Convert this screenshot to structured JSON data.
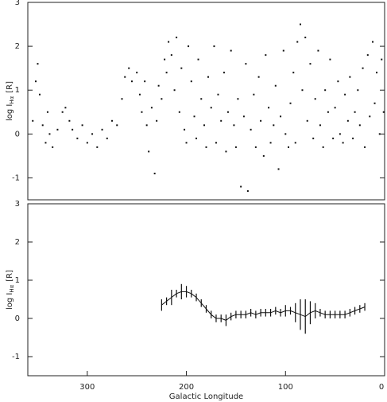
{
  "chart_data": [
    {
      "type": "scatter",
      "ylabel": [
        "log I",
        "Hα",
        "[R]"
      ],
      "color": "#111111",
      "xlim": [
        360,
        0
      ],
      "ylim": [
        -1.5,
        3
      ],
      "yticks": [
        -1,
        0,
        1,
        2,
        3
      ],
      "x": [
        355,
        352,
        350,
        348,
        345,
        342,
        340,
        338,
        335,
        330,
        325,
        322,
        318,
        315,
        310,
        305,
        300,
        295,
        290,
        285,
        280,
        275,
        270,
        265,
        262,
        258,
        255,
        250,
        247,
        245,
        242,
        240,
        238,
        235,
        232,
        230,
        228,
        225,
        222,
        220,
        218,
        215,
        212,
        210,
        207,
        205,
        202,
        200,
        198,
        195,
        192,
        190,
        188,
        185,
        182,
        180,
        178,
        175,
        172,
        170,
        168,
        165,
        162,
        160,
        158,
        155,
        152,
        150,
        148,
        145,
        142,
        140,
        138,
        135,
        132,
        130,
        127,
        125,
        122,
        120,
        117,
        115,
        112,
        110,
        107,
        105,
        102,
        100,
        97,
        95,
        92,
        90,
        88,
        85,
        83,
        80,
        78,
        75,
        72,
        70,
        67,
        65,
        62,
        60,
        57,
        55,
        52,
        50,
        47,
        45,
        42,
        40,
        37,
        35,
        32,
        30,
        27,
        25,
        22,
        20,
        17,
        15,
        12,
        10,
        8,
        5,
        3,
        1
      ],
      "y": [
        0.3,
        1.2,
        1.6,
        0.9,
        0.2,
        -0.2,
        0.5,
        0.0,
        -0.3,
        0.1,
        0.5,
        0.6,
        0.3,
        0.1,
        -0.1,
        0.2,
        -0.2,
        0.0,
        -0.3,
        0.1,
        -0.1,
        0.3,
        0.2,
        0.8,
        1.3,
        1.5,
        1.2,
        1.4,
        0.9,
        0.5,
        1.2,
        0.2,
        -0.4,
        0.6,
        -0.9,
        0.3,
        1.1,
        0.8,
        1.7,
        1.4,
        2.1,
        1.8,
        1.0,
        2.2,
        0.5,
        1.5,
        0.1,
        -0.2,
        2.0,
        1.2,
        0.4,
        -0.1,
        1.7,
        0.8,
        0.2,
        -0.3,
        1.3,
        0.6,
        2.0,
        -0.2,
        0.9,
        0.3,
        1.4,
        -0.4,
        0.5,
        1.9,
        0.2,
        -0.3,
        0.8,
        -1.2,
        0.4,
        1.6,
        -1.3,
        0.1,
        0.9,
        -0.3,
        1.3,
        0.3,
        -0.5,
        1.8,
        0.6,
        -0.2,
        0.2,
        1.1,
        -0.8,
        0.4,
        1.9,
        0.0,
        -0.3,
        0.7,
        1.4,
        -0.2,
        2.1,
        2.5,
        1.0,
        2.2,
        0.3,
        1.6,
        -0.1,
        0.8,
        1.9,
        0.2,
        -0.3,
        1.0,
        0.5,
        1.7,
        -0.1,
        0.6,
        1.2,
        0.0,
        -0.2,
        0.9,
        0.3,
        1.3,
        -0.1,
        0.5,
        1.0,
        0.2,
        1.5,
        -0.3,
        1.8,
        0.4,
        2.1,
        0.7,
        1.4,
        0.0,
        1.7,
        0.5
      ]
    },
    {
      "type": "errorbar",
      "ylabel": [
        "log I",
        "Hα",
        "[R]"
      ],
      "xlabel": "Galactic Longitude",
      "color": "#111111",
      "xlim": [
        360,
        0
      ],
      "xticks": [
        300,
        200,
        100,
        0
      ],
      "ylim": [
        -1.5,
        3
      ],
      "yticks": [
        -1,
        0,
        1,
        2,
        3
      ],
      "x": [
        225,
        220,
        215,
        210,
        205,
        200,
        195,
        190,
        185,
        180,
        175,
        170,
        165,
        160,
        155,
        150,
        145,
        140,
        135,
        130,
        125,
        120,
        115,
        110,
        105,
        100,
        95,
        90,
        85,
        80,
        75,
        70,
        65,
        60,
        55,
        50,
        45,
        40,
        35,
        30,
        25,
        20
      ],
      "values": [
        0.35,
        0.45,
        0.55,
        0.65,
        0.7,
        0.7,
        0.65,
        0.55,
        0.4,
        0.25,
        0.1,
        0.0,
        0.0,
        -0.05,
        0.05,
        0.1,
        0.1,
        0.1,
        0.15,
        0.1,
        0.15,
        0.15,
        0.15,
        0.2,
        0.15,
        0.2,
        0.2,
        0.15,
        0.1,
        0.05,
        0.15,
        0.2,
        0.15,
        0.1,
        0.1,
        0.1,
        0.1,
        0.1,
        0.15,
        0.2,
        0.25,
        0.3
      ],
      "errors": [
        0.15,
        0.1,
        0.2,
        0.1,
        0.2,
        0.15,
        0.1,
        0.1,
        0.1,
        0.1,
        0.1,
        0.1,
        0.1,
        0.15,
        0.1,
        0.1,
        0.1,
        0.1,
        0.1,
        0.1,
        0.1,
        0.1,
        0.1,
        0.1,
        0.1,
        0.15,
        0.1,
        0.25,
        0.4,
        0.45,
        0.3,
        0.2,
        0.1,
        0.1,
        0.1,
        0.1,
        0.1,
        0.1,
        0.1,
        0.1,
        0.1,
        0.1
      ]
    }
  ]
}
